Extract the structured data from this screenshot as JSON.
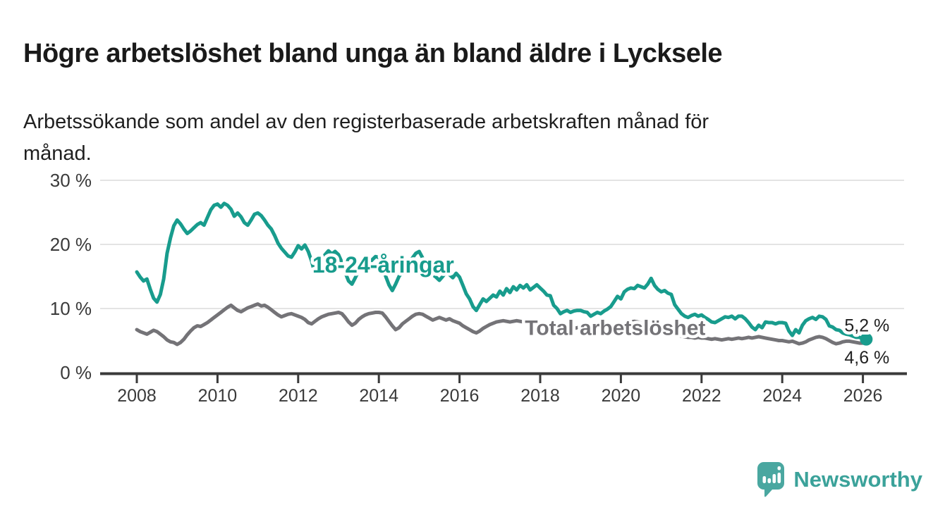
{
  "header": {
    "title": "Högre arbetslöshet bland unga än bland äldre i Lycksele",
    "subtitle": "Arbetssökande som andel av den registerbaserade arbetskraften månad för månad.",
    "subtitle_lines": [
      "Arbetssökande som andel av den registerbaserade arbetskraften månad för",
      "månad."
    ]
  },
  "footer": {
    "brand": "Newsworthy",
    "logo_icon": "bar-chart-speech-bubble-icon"
  },
  "colors": {
    "young": "#189C8D",
    "total": "#747377",
    "axis": "#3a3a3a",
    "grid": "#dbdbdb",
    "tick_text": "#3a3a3a",
    "value_text": "#222222",
    "title_text": "#1a1a1a",
    "brand_icon": "#4aa7a0",
    "brand_text": "#3ba29a",
    "background": "#ffffff"
  },
  "chart_data": {
    "type": "line",
    "x_unit": "month",
    "x_start": "2008-01",
    "x_end": "2026-02",
    "xticks": [
      2008,
      2010,
      2012,
      2014,
      2016,
      2018,
      2020,
      2022,
      2024,
      2026
    ],
    "ylim": [
      0,
      30
    ],
    "yticks": [
      {
        "value": 0,
        "label": "0 %"
      },
      {
        "value": 10,
        "label": "10 %"
      },
      {
        "value": 20,
        "label": "20 %"
      },
      {
        "value": 30,
        "label": "30 %"
      }
    ],
    "grid": true,
    "legend_position": "inline-labels",
    "series": [
      {
        "id": "total",
        "name": "Total arbetslöshet",
        "color": "#747377",
        "end_label": "4,6 %",
        "end_value": 4.6,
        "label_pos": {
          "year": 2017.62,
          "pct": 5.9
        },
        "values": [
          6.7,
          6.4,
          6.2,
          6.0,
          6.3,
          6.6,
          6.4,
          6.0,
          5.6,
          5.1,
          4.8,
          4.7,
          4.4,
          4.7,
          5.2,
          5.9,
          6.5,
          7.0,
          7.3,
          7.2,
          7.5,
          7.8,
          8.2,
          8.6,
          9.0,
          9.4,
          9.8,
          10.2,
          10.5,
          10.1,
          9.7,
          9.5,
          9.8,
          10.1,
          10.3,
          10.5,
          10.7,
          10.4,
          10.5,
          10.2,
          9.8,
          9.4,
          9.0,
          8.7,
          8.9,
          9.1,
          9.2,
          9.0,
          8.8,
          8.6,
          8.3,
          7.8,
          7.6,
          8.0,
          8.4,
          8.7,
          8.9,
          9.1,
          9.2,
          9.3,
          9.4,
          9.2,
          8.6,
          7.9,
          7.4,
          7.7,
          8.3,
          8.7,
          9.0,
          9.2,
          9.3,
          9.4,
          9.4,
          9.3,
          8.7,
          8.0,
          7.3,
          6.7,
          7.0,
          7.6,
          8.0,
          8.4,
          8.8,
          9.1,
          9.2,
          9.1,
          8.8,
          8.5,
          8.2,
          8.4,
          8.6,
          8.4,
          8.2,
          8.4,
          8.1,
          7.9,
          7.7,
          7.3,
          7.0,
          6.7,
          6.4,
          6.2,
          6.5,
          6.9,
          7.2,
          7.5,
          7.7,
          7.9,
          8.0,
          8.1,
          8.0,
          7.9,
          8.0,
          8.1,
          8.0,
          7.9,
          7.7,
          7.6,
          7.7,
          7.8,
          7.8,
          7.6,
          7.4,
          7.2,
          7.0,
          6.9,
          6.8,
          6.7,
          6.7,
          6.8,
          6.9,
          7.0,
          7.0,
          6.9,
          6.8,
          6.6,
          6.5,
          6.4,
          6.3,
          6.3,
          6.4,
          6.5,
          6.7,
          6.9,
          7.1,
          7.3,
          7.6,
          7.9,
          8.0,
          7.9,
          7.7,
          7.5,
          7.3,
          7.1,
          6.9,
          6.7,
          6.5,
          6.3,
          6.1,
          6.0,
          5.9,
          5.8,
          5.7,
          5.6,
          5.5,
          5.5,
          5.4,
          5.5,
          5.4,
          5.4,
          5.3,
          5.2,
          5.3,
          5.2,
          5.1,
          5.2,
          5.3,
          5.2,
          5.3,
          5.4,
          5.3,
          5.4,
          5.5,
          5.4,
          5.5,
          5.6,
          5.5,
          5.4,
          5.3,
          5.2,
          5.1,
          5.0,
          5.0,
          4.9,
          4.8,
          4.9,
          4.7,
          4.5,
          4.6,
          4.8,
          5.1,
          5.3,
          5.5,
          5.6,
          5.5,
          5.3,
          5.0,
          4.7,
          4.5,
          4.6,
          4.8,
          4.9,
          4.9,
          4.8,
          4.7,
          4.6,
          4.6,
          4.6
        ]
      },
      {
        "id": "young",
        "name": "18-24-åringar",
        "color": "#189C8D",
        "end_label": "5,2 %",
        "end_value": 5.2,
        "end_dot": true,
        "label_pos": {
          "year": 2012.35,
          "pct": 15.6
        },
        "values": [
          15.7,
          14.9,
          14.3,
          14.6,
          13.0,
          11.6,
          11.0,
          12.2,
          14.6,
          18.6,
          21.0,
          22.9,
          23.8,
          23.2,
          22.4,
          21.7,
          22.1,
          22.6,
          23.1,
          23.4,
          23.0,
          24.2,
          25.4,
          26.1,
          26.3,
          25.8,
          26.4,
          26.1,
          25.5,
          24.4,
          24.9,
          24.3,
          23.4,
          23.0,
          23.8,
          24.7,
          24.9,
          24.5,
          23.8,
          23.0,
          22.4,
          21.4,
          20.2,
          19.4,
          18.8,
          18.2,
          18.0,
          18.8,
          19.8,
          19.3,
          19.9,
          18.9,
          17.4,
          15.4,
          16.2,
          17.3,
          18.4,
          19.0,
          18.5,
          18.9,
          18.4,
          17.2,
          15.6,
          14.3,
          13.8,
          14.8,
          15.9,
          16.7,
          17.3,
          17.0,
          17.6,
          18.1,
          18.0,
          16.6,
          15.1,
          13.7,
          12.8,
          13.8,
          15.0,
          15.7,
          16.3,
          17.1,
          17.9,
          18.6,
          18.9,
          17.9,
          17.0,
          16.2,
          15.3,
          14.9,
          14.4,
          15.0,
          15.7,
          15.3,
          14.8,
          15.5,
          14.9,
          13.6,
          12.3,
          11.5,
          10.3,
          9.7,
          10.6,
          11.5,
          11.1,
          11.6,
          12.1,
          11.8,
          12.7,
          12.1,
          13.1,
          12.5,
          13.4,
          12.9,
          13.6,
          13.2,
          13.7,
          12.9,
          13.3,
          13.7,
          13.2,
          12.7,
          12.1,
          12.0,
          10.5,
          10.0,
          9.2,
          9.5,
          9.7,
          9.4,
          9.6,
          9.7,
          9.7,
          9.5,
          9.4,
          8.8,
          9.1,
          9.4,
          9.2,
          9.6,
          9.9,
          10.3,
          11.1,
          11.9,
          11.5,
          12.6,
          13.0,
          13.2,
          13.1,
          13.6,
          13.4,
          13.2,
          13.8,
          14.7,
          13.6,
          13.0,
          12.6,
          12.8,
          12.4,
          12.2,
          10.6,
          9.9,
          9.2,
          8.8,
          8.6,
          8.9,
          9.1,
          8.8,
          9.0,
          8.6,
          8.3,
          7.9,
          7.8,
          8.1,
          8.4,
          8.7,
          8.6,
          8.8,
          8.4,
          8.8,
          8.8,
          8.4,
          7.8,
          7.1,
          6.7,
          7.4,
          7.0,
          7.9,
          7.8,
          7.8,
          7.6,
          7.8,
          7.8,
          7.7,
          6.5,
          5.8,
          6.7,
          6.2,
          7.4,
          8.1,
          8.4,
          8.6,
          8.3,
          8.8,
          8.7,
          8.3,
          7.3,
          7.1,
          6.7,
          6.6,
          6.2,
          6.0,
          5.9,
          5.7,
          5.5,
          5.5,
          5.3,
          5.2
        ]
      }
    ]
  }
}
